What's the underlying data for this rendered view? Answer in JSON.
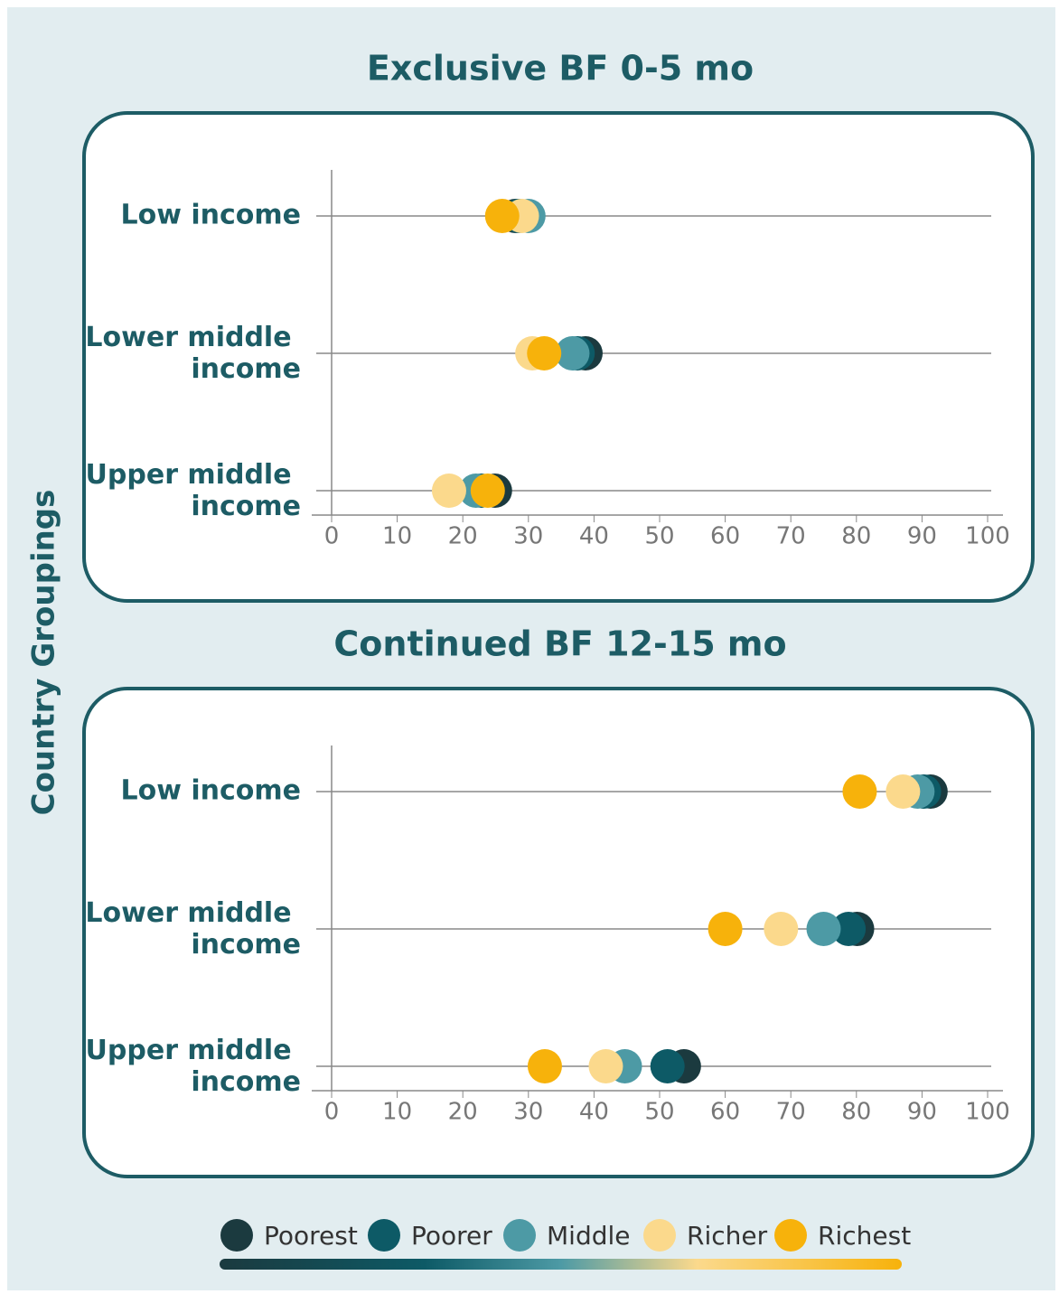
{
  "chart_data": [
    {
      "type": "dot",
      "title": "Exclusive BF 0-5 mo",
      "ylabel": "Country Groupings",
      "categories": [
        "Low income",
        "Lower middle income",
        "Upper middle income"
      ],
      "series": [
        {
          "name": "Poorest",
          "color": "#1b3a3f",
          "values": [
            28,
            38.7,
            24.9
          ]
        },
        {
          "name": "Poorer",
          "color": "#0d5a66",
          "values": [
            28.5,
            37.5,
            22.8
          ]
        },
        {
          "name": "Middle",
          "color": "#4d9aa5",
          "values": [
            30,
            36.7,
            22
          ]
        },
        {
          "name": "Richer",
          "color": "#fbd98c",
          "values": [
            29,
            30.6,
            17.9
          ]
        },
        {
          "name": "Richest",
          "color": "#f7b20b",
          "values": [
            26,
            32.4,
            23.8
          ]
        }
      ],
      "xlim": [
        0,
        100
      ],
      "xticks": [
        0,
        10,
        20,
        30,
        40,
        50,
        60,
        70,
        80,
        90,
        100
      ]
    },
    {
      "type": "dot",
      "title": "Continued BF 12-15 mo",
      "categories": [
        "Low income",
        "Lower middle income",
        "Upper middle income"
      ],
      "series": [
        {
          "name": "Poorest",
          "color": "#1b3a3f",
          "values": [
            91.3,
            80.1,
            53.7
          ]
        },
        {
          "name": "Poorer",
          "color": "#0d5a66",
          "values": [
            90.3,
            78.8,
            51.2
          ]
        },
        {
          "name": "Middle",
          "color": "#4d9aa5",
          "values": [
            89.3,
            75,
            44.7
          ]
        },
        {
          "name": "Richer",
          "color": "#fbd98c",
          "values": [
            87.1,
            68.5,
            41.8
          ]
        },
        {
          "name": "Richest",
          "color": "#f7b20b",
          "values": [
            80.5,
            60,
            32.5
          ]
        }
      ],
      "xlim": [
        0,
        100
      ],
      "xticks": [
        0,
        10,
        20,
        30,
        40,
        50,
        60,
        70,
        80,
        90,
        100
      ]
    }
  ]
}
